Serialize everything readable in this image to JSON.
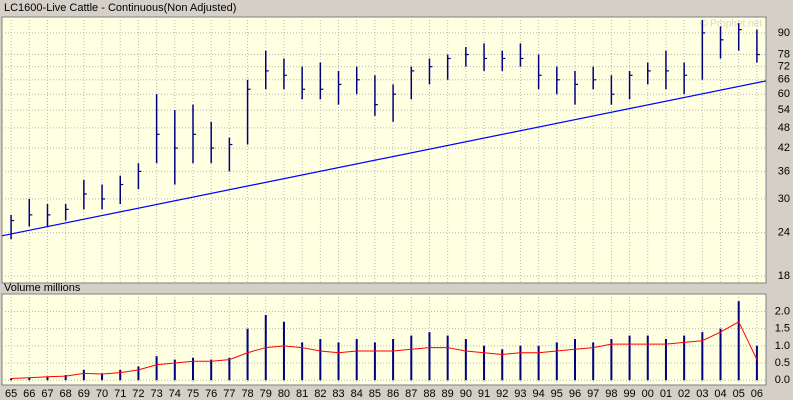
{
  "chart_data": [
    {
      "type": "ohlc",
      "title": "LC1600-Live Cattle - Continuous(Non Adjusted)",
      "watermark": "© Prophet.net",
      "color": "#000080",
      "log_scale": true,
      "grid": true,
      "high": [
        27,
        30,
        29,
        29,
        34,
        33,
        35,
        38,
        60,
        54,
        56,
        50,
        45,
        66,
        80,
        76,
        72,
        74,
        70,
        72,
        68,
        64,
        72,
        76,
        78,
        82,
        84,
        80,
        84,
        78,
        72,
        70,
        72,
        68,
        70,
        74,
        80,
        74,
        98,
        94,
        96,
        92
      ],
      "low": [
        23,
        25,
        25,
        26,
        28,
        28,
        29,
        32,
        38,
        33,
        38,
        38,
        36,
        43,
        62,
        62,
        58,
        58,
        56,
        60,
        52,
        50,
        58,
        64,
        66,
        72,
        70,
        70,
        72,
        62,
        60,
        56,
        62,
        56,
        58,
        64,
        62,
        60,
        66,
        76,
        80,
        74
      ],
      "close": [
        26,
        27,
        27,
        28,
        31,
        30,
        33,
        36,
        46,
        42,
        46,
        42,
        43,
        62,
        70,
        68,
        62,
        62,
        64,
        66,
        56,
        60,
        70,
        72,
        76,
        78,
        76,
        76,
        76,
        68,
        66,
        64,
        66,
        60,
        68,
        70,
        70,
        68,
        90,
        86,
        92,
        78
      ],
      "trendline": {
        "color": "#0000ff",
        "values": [
          23.5,
          65.5
        ]
      },
      "ylim": [
        17.2,
        100
      ],
      "yticks": [
        18,
        24,
        30,
        36,
        42,
        48,
        54,
        60,
        66,
        72,
        78,
        90
      ]
    },
    {
      "type": "bar",
      "title": "Volume  millions",
      "color": "#000080",
      "grid": true,
      "categories": [
        "65",
        "66",
        "67",
        "68",
        "69",
        "70",
        "71",
        "72",
        "73",
        "74",
        "75",
        "76",
        "77",
        "78",
        "79",
        "80",
        "81",
        "82",
        "83",
        "84",
        "85",
        "86",
        "87",
        "88",
        "89",
        "90",
        "91",
        "92",
        "93",
        "94",
        "95",
        "96",
        "97",
        "98",
        "99",
        "00",
        "01",
        "02",
        "03",
        "04",
        "05",
        "06"
      ],
      "values": [
        0.05,
        0.08,
        0.1,
        0.15,
        0.3,
        0.2,
        0.3,
        0.4,
        0.7,
        0.6,
        0.65,
        0.6,
        0.65,
        1.5,
        1.9,
        1.7,
        1.1,
        1.2,
        1.1,
        1.2,
        1.1,
        1.2,
        1.3,
        1.4,
        1.3,
        1.2,
        1.0,
        0.9,
        1.0,
        1.0,
        1.1,
        1.2,
        1.1,
        1.2,
        1.3,
        1.3,
        1.2,
        1.3,
        1.4,
        1.5,
        2.3,
        1.0
      ],
      "average": {
        "color": "#ff0000",
        "values": [
          0.05,
          0.07,
          0.1,
          0.12,
          0.2,
          0.18,
          0.22,
          0.3,
          0.45,
          0.5,
          0.55,
          0.55,
          0.6,
          0.8,
          0.95,
          1.0,
          0.95,
          0.85,
          0.8,
          0.85,
          0.85,
          0.85,
          0.9,
          0.95,
          0.95,
          0.85,
          0.8,
          0.75,
          0.8,
          0.8,
          0.85,
          0.9,
          0.95,
          1.05,
          1.05,
          1.05,
          1.05,
          1.1,
          1.15,
          1.4,
          1.7,
          0.6
        ]
      },
      "ylim": [
        -0.14,
        2.51
      ],
      "yticks": [
        {
          "value": 0,
          "label": "0.0"
        },
        {
          "value": 0.5,
          "label": "0.5"
        },
        {
          "value": 1,
          "label": "1.0"
        },
        {
          "value": 1.5,
          "label": "1.5"
        },
        {
          "value": 2,
          "label": "2.0"
        }
      ]
    }
  ]
}
